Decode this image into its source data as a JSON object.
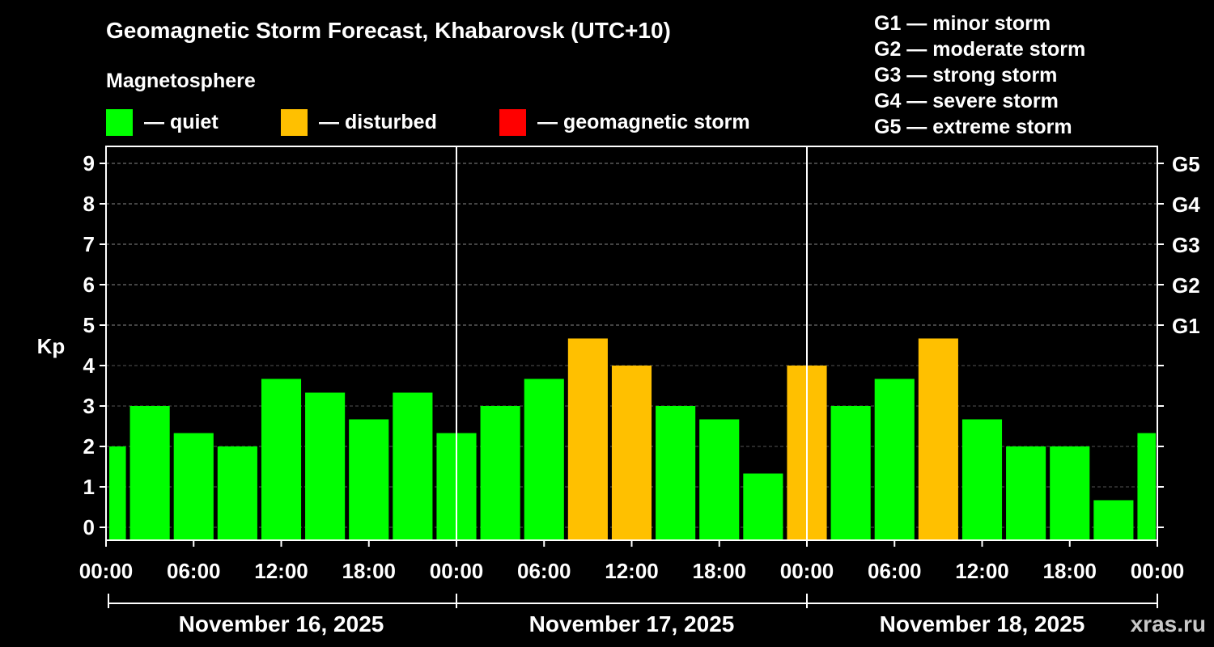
{
  "chart_data": {
    "type": "bar",
    "title": "Geomagnetic Storm Forecast, Khabarovsk (UTC+10)",
    "subtitle": "Magnetosphere",
    "ylabel": "Kp",
    "ylim": [
      0,
      9
    ],
    "y_ticks": [
      "0",
      "1",
      "2",
      "3",
      "4",
      "5",
      "6",
      "7",
      "8",
      "9"
    ],
    "right_ticks": [
      {
        "kp": 5,
        "label": "G1"
      },
      {
        "kp": 6,
        "label": "G2"
      },
      {
        "kp": 7,
        "label": "G3"
      },
      {
        "kp": 8,
        "label": "G4"
      },
      {
        "kp": 9,
        "label": "G5"
      }
    ],
    "x_tick_labels": [
      "00:00",
      "06:00",
      "12:00",
      "18:00",
      "00:00",
      "06:00",
      "12:00",
      "18:00",
      "00:00",
      "06:00",
      "12:00",
      "18:00",
      "00:00"
    ],
    "days": [
      "November 16, 2025",
      "November 17, 2025",
      "November 18, 2025"
    ],
    "interval_hours": 3,
    "legend": [
      {
        "label": "— quiet",
        "color": "#00ff00"
      },
      {
        "label": "— disturbed",
        "color": "#ffc000"
      },
      {
        "label": "— geomagnetic storm",
        "color": "#ff0000"
      }
    ],
    "storm_scale": [
      "G1 — minor storm",
      "G2 — moderate storm",
      "G3 — strong storm",
      "G4 — severe storm",
      "G5 — extreme storm"
    ],
    "grid": true,
    "bars": [
      {
        "start_hour": 0,
        "kp": 2.0
      },
      {
        "start_hour": 3,
        "kp": 3.0
      },
      {
        "start_hour": 6,
        "kp": 2.33
      },
      {
        "start_hour": 9,
        "kp": 2.0
      },
      {
        "start_hour": 12,
        "kp": 3.67
      },
      {
        "start_hour": 15,
        "kp": 3.33
      },
      {
        "start_hour": 18,
        "kp": 2.67
      },
      {
        "start_hour": 21,
        "kp": 3.33
      },
      {
        "start_hour": 24,
        "kp": 2.33
      },
      {
        "start_hour": 27,
        "kp": 3.0
      },
      {
        "start_hour": 30,
        "kp": 3.67
      },
      {
        "start_hour": 33,
        "kp": 4.67
      },
      {
        "start_hour": 36,
        "kp": 4.0
      },
      {
        "start_hour": 39,
        "kp": 3.0
      },
      {
        "start_hour": 42,
        "kp": 2.67
      },
      {
        "start_hour": 45,
        "kp": 1.33
      },
      {
        "start_hour": 48,
        "kp": 4.0
      },
      {
        "start_hour": 51,
        "kp": 3.0
      },
      {
        "start_hour": 54,
        "kp": 3.67
      },
      {
        "start_hour": 57,
        "kp": 4.67
      },
      {
        "start_hour": 60,
        "kp": 2.67
      },
      {
        "start_hour": 63,
        "kp": 2.0
      },
      {
        "start_hour": 66,
        "kp": 2.0
      },
      {
        "start_hour": 69,
        "kp": 0.67
      },
      {
        "start_hour": 72,
        "kp": 2.33
      }
    ],
    "colors": {
      "quiet": "#00ff00",
      "disturbed": "#ffc000",
      "storm": "#ff0000"
    }
  },
  "watermark": "xras.ru"
}
